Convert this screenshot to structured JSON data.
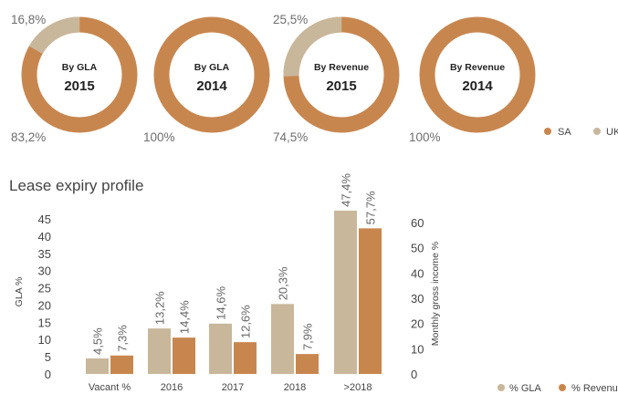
{
  "colors": {
    "sa": "#c8864f",
    "uk": "#c9b79b"
  },
  "donuts": [
    {
      "label": "By GLA",
      "year": "2015",
      "sa_pct": 83.2,
      "uk_pct": 16.8,
      "sa_text": "83,2%",
      "uk_text": "16,8%"
    },
    {
      "label": "By GLA",
      "year": "2014",
      "sa_pct": 100,
      "uk_pct": 0,
      "sa_text": "100%",
      "uk_text": ""
    },
    {
      "label": "By Revenue",
      "year": "2015",
      "sa_pct": 74.5,
      "uk_pct": 25.5,
      "sa_text": "74,5%",
      "uk_text": "25,5%"
    },
    {
      "label": "By Revenue",
      "year": "2014",
      "sa_pct": 100,
      "uk_pct": 0,
      "sa_text": "100%",
      "uk_text": ""
    }
  ],
  "donut_legend": {
    "sa": "SA",
    "uk": "UK"
  },
  "chart_data": {
    "type": "bar",
    "title": "Lease expiry profile",
    "categories": [
      "Vacant %",
      "2016",
      "2017",
      "2018",
      ">2018"
    ],
    "series": [
      {
        "name": "% GLA",
        "values": [
          4.5,
          13.2,
          14.6,
          20.3,
          47.4
        ],
        "labels": [
          "4,5%",
          "13,2%",
          "14,6%",
          "20,3%",
          "47,4%"
        ],
        "axis": "left"
      },
      {
        "name": "% Revenue",
        "values": [
          7.3,
          14.4,
          12.6,
          7.9,
          57.7
        ],
        "labels": [
          "7,3%",
          "14,4%",
          "12,6%",
          "7,9%",
          "57,7%"
        ],
        "axis": "right"
      }
    ],
    "ylabel": "GLA %",
    "ylabel_right": "Monthly gross income %",
    "ylim": [
      0,
      45
    ],
    "ylim_right": [
      0,
      60
    ],
    "yticks": [
      "0",
      "5",
      "10",
      "15",
      "20",
      "25",
      "30",
      "35",
      "40",
      "45"
    ],
    "yticks_right": [
      "0",
      "10",
      "20",
      "30",
      "40",
      "50",
      "60"
    ],
    "legend_position": "bottom-right"
  }
}
